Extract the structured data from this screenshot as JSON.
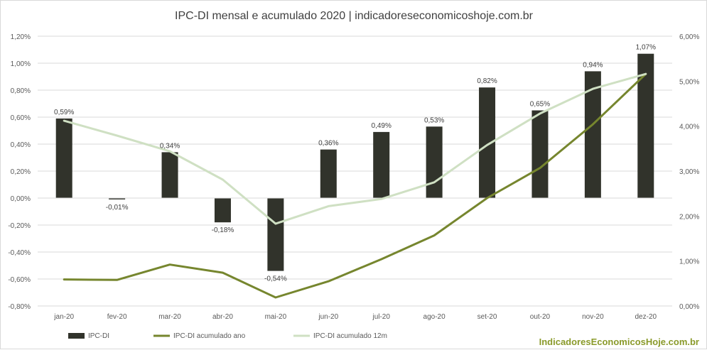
{
  "chart_data": {
    "type": "bar",
    "title": "IPC-DI mensal e acumulado 2020 | indicadoreseconomicoshoje.com.br",
    "categories": [
      "jan-20",
      "fev-20",
      "mar-20",
      "abr-20",
      "mai-20",
      "jun-20",
      "jul-20",
      "ago-20",
      "set-20",
      "out-20",
      "nov-20",
      "dez-20"
    ],
    "series": [
      {
        "name": "IPC-DI",
        "axis": "left",
        "kind": "bar",
        "color": "#31332b",
        "values": [
          0.59,
          -0.01,
          0.34,
          -0.18,
          -0.54,
          0.36,
          0.49,
          0.53,
          0.82,
          0.65,
          0.94,
          1.07
        ],
        "labels": [
          "0,59%",
          "-0,01%",
          "0,34%",
          "-0,18%",
          "-0,54%",
          "0,36%",
          "0,49%",
          "0,53%",
          "0,82%",
          "0,65%",
          "0,94%",
          "1,07%"
        ]
      },
      {
        "name": "IPC-DI acumulado ano",
        "axis": "right",
        "kind": "line",
        "color": "#76862e",
        "values": [
          0.59,
          0.58,
          0.92,
          0.74,
          0.19,
          0.55,
          1.04,
          1.57,
          2.4,
          3.07,
          4.04,
          5.16
        ]
      },
      {
        "name": "IPC-DI acumulado 12m",
        "axis": "right",
        "kind": "line",
        "color": "#cfe0c3",
        "values": [
          4.12,
          3.79,
          3.44,
          2.81,
          1.83,
          2.22,
          2.38,
          2.75,
          3.58,
          4.28,
          4.83,
          5.16
        ]
      }
    ],
    "y_left": {
      "min": -0.8,
      "max": 1.2,
      "ticks": [
        1.2,
        1.0,
        0.8,
        0.6,
        0.4,
        0.2,
        0.0,
        -0.2,
        -0.4,
        -0.6,
        -0.8
      ],
      "tick_labels": [
        "1,20%",
        "1,00%",
        "0,80%",
        "0,60%",
        "0,40%",
        "0,20%",
        "0,00%",
        "-0,20%",
        "-0,40%",
        "-0,60%",
        "-0,80%"
      ]
    },
    "y_right": {
      "min": 0.0,
      "max": 6.0,
      "ticks": [
        6,
        5,
        4,
        3,
        2,
        1,
        0
      ],
      "tick_labels": [
        "6,00%",
        "5,00%",
        "4,00%",
        "3,00%",
        "2,00%",
        "1,00%",
        "0,00%"
      ]
    },
    "grid": true,
    "legend_position": "bottom-left",
    "gridline_color": "#d9d9d9"
  },
  "brand_text": "IndicadoresEconomicosHoje.com.br",
  "brand_color": "#8a9a2a"
}
